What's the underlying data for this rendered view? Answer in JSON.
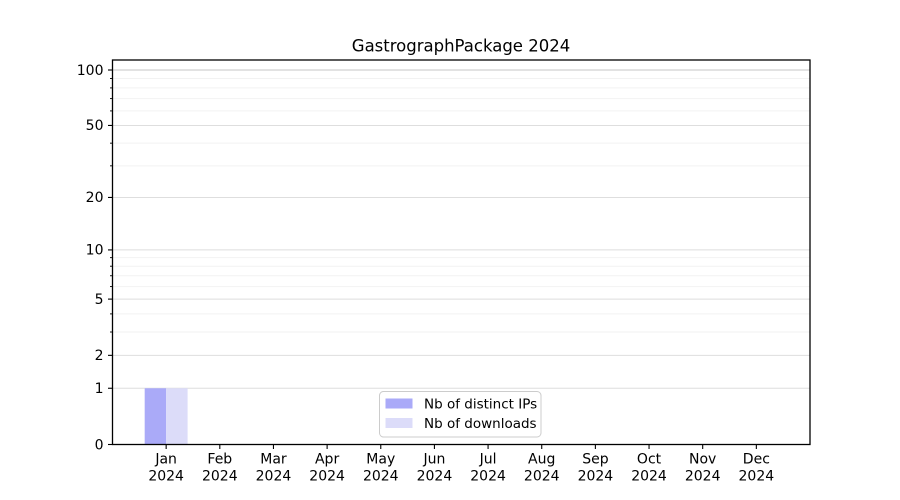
{
  "chart_data": {
    "type": "bar",
    "title": "GastrographPackage 2024",
    "categories": [
      "Jan 2024",
      "Feb 2024",
      "Mar 2024",
      "Apr 2024",
      "May 2024",
      "Jun 2024",
      "Jul 2024",
      "Aug 2024",
      "Sep 2024",
      "Oct 2024",
      "Nov 2024",
      "Dec 2024"
    ],
    "series": [
      {
        "name": "Nb of distinct IPs",
        "color": "#aaaaf8",
        "values": [
          1,
          0,
          0,
          0,
          0,
          0,
          0,
          0,
          0,
          0,
          0,
          0
        ]
      },
      {
        "name": "Nb of downloads",
        "color": "#dcdcf9",
        "values": [
          1,
          0,
          0,
          0,
          0,
          0,
          0,
          0,
          0,
          0,
          0,
          0
        ]
      }
    ],
    "xlabel": "",
    "ylabel": "",
    "yscale": "log1p",
    "ylim": [
      0,
      113
    ],
    "yticks": [
      0,
      1,
      2,
      5,
      10,
      20,
      50,
      100
    ],
    "minor_yticks": [
      3,
      4,
      6,
      7,
      8,
      9,
      30,
      40,
      60,
      70,
      80,
      90
    ],
    "grid": "on",
    "legend_position": "lower center",
    "colors": {
      "axis": "#000000",
      "grid_major": "#dedede",
      "grid_minor": "#f2f2f2",
      "grid_top": "#c6c6c6",
      "background": "#ffffff"
    }
  }
}
